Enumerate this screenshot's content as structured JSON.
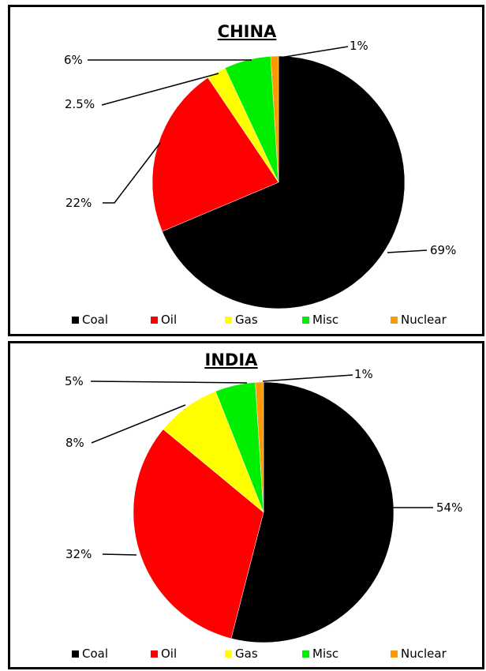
{
  "chart_data": [
    {
      "type": "pie",
      "title": "CHINA",
      "categories": [
        "Coal",
        "Oil",
        "Gas",
        "Misc",
        "Nuclear"
      ],
      "values": [
        69,
        22,
        2.5,
        6,
        1
      ],
      "labels": [
        "69%",
        "22%",
        "2.5%",
        "6%",
        "1%"
      ],
      "colors": [
        "#000000",
        "#ff0000",
        "#ffff00",
        "#00ee00",
        "#ff9900"
      ],
      "legend": "bottom"
    },
    {
      "type": "pie",
      "title": "INDIA",
      "categories": [
        "Coal",
        "Oil",
        "Gas",
        "Misc",
        "Nuclear"
      ],
      "values": [
        54,
        32,
        8,
        5,
        1
      ],
      "labels": [
        "54%",
        "32%",
        "8%",
        "5%",
        "1%"
      ],
      "colors": [
        "#000000",
        "#ff0000",
        "#ffff00",
        "#00ee00",
        "#ff9900"
      ],
      "legend": "bottom"
    }
  ]
}
